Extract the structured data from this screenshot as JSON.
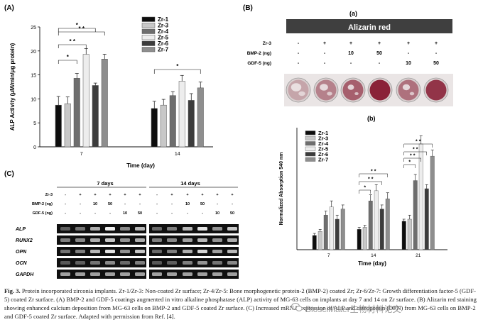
{
  "panels": {
    "A": "(A)",
    "B": "(B)",
    "C": "(C)",
    "Ba": "(a)",
    "Bb": "(b)"
  },
  "alizarin_title": "Alizarin red",
  "factor_table": {
    "rows": [
      {
        "label": "Zr-3",
        "values": [
          "-",
          "+",
          "+",
          "+",
          "+",
          "+"
        ]
      },
      {
        "label": "BMP-2 (ng)",
        "values": [
          "-",
          "-",
          "10",
          "50",
          "-",
          "-"
        ]
      },
      {
        "label": "GDF-5 (ng)",
        "values": [
          "-",
          "-",
          "-",
          "-",
          "10",
          "50"
        ]
      }
    ]
  },
  "gel": {
    "title_7": "7 days",
    "title_14": "14 days",
    "rows": [
      {
        "label": "Zr-3",
        "values": [
          "-",
          "+",
          "+",
          "+",
          "+",
          "+"
        ]
      },
      {
        "label": "BMP-2 (ng)",
        "values": [
          "-",
          "-",
          "10",
          "50",
          "-",
          "-"
        ]
      },
      {
        "label": "GDF-5 (ng)",
        "values": [
          "-",
          "-",
          "-",
          "-",
          "10",
          "50"
        ]
      }
    ],
    "genes": [
      "ALP",
      "RUNX2",
      "OPN",
      "OCN",
      "GAPDH"
    ],
    "intensity_7": [
      [
        0.35,
        0.45,
        0.7,
        0.95,
        0.55,
        0.75
      ],
      [
        0.5,
        0.55,
        0.7,
        0.8,
        0.6,
        0.7
      ],
      [
        0.45,
        0.5,
        0.75,
        0.9,
        0.6,
        0.8
      ],
      [
        0.3,
        0.35,
        0.45,
        0.55,
        0.4,
        0.5
      ],
      [
        0.65,
        0.65,
        0.65,
        0.65,
        0.65,
        0.65
      ]
    ],
    "intensity_14": [
      [
        0.4,
        0.5,
        0.75,
        0.9,
        0.6,
        0.8
      ],
      [
        0.5,
        0.55,
        0.65,
        0.75,
        0.6,
        0.7
      ],
      [
        0.4,
        0.5,
        0.7,
        0.85,
        0.65,
        0.75
      ],
      [
        0.3,
        0.35,
        0.5,
        0.6,
        0.45,
        0.55
      ],
      [
        0.65,
        0.65,
        0.65,
        0.65,
        0.65,
        0.65
      ]
    ]
  },
  "colors": {
    "Zr-1": "#0d0d0d",
    "Zr-3": "#c8c8c8",
    "Zr-4": "#6e6e6e",
    "Zr-5": "#ededed",
    "Zr-6": "#3c3c3c",
    "Zr-7": "#8e8e8e",
    "dish_rim": "#d9d0d0",
    "dish_stain": "#8a2238",
    "dish_white": "#efe9ea"
  },
  "chart_data": [
    {
      "type": "bar",
      "xlabel": "Time (day)",
      "ylabel": "ALP Activity (μM/min/μg protein)",
      "categories": [
        "7",
        "14"
      ],
      "ylim": [
        0,
        25
      ],
      "yticks": [
        "0",
        "5",
        "10",
        "15",
        "20",
        "25"
      ],
      "series": [
        {
          "name": "Zr-1",
          "values": [
            8.7,
            8.0
          ],
          "errors": [
            1.8,
            1.5
          ]
        },
        {
          "name": "Zr-3",
          "values": [
            9.0,
            8.7
          ],
          "errors": [
            1.4,
            1.2
          ]
        },
        {
          "name": "Zr-4",
          "values": [
            14.3,
            10.7
          ],
          "errors": [
            1.0,
            0.8
          ]
        },
        {
          "name": "Zr-5",
          "values": [
            19.3,
            13.7
          ],
          "errors": [
            1.2,
            1.2
          ]
        },
        {
          "name": "Zr-6",
          "values": [
            12.8,
            9.7
          ],
          "errors": [
            0.5,
            1.4
          ]
        },
        {
          "name": "Zr-7",
          "values": [
            18.3,
            12.3
          ],
          "errors": [
            1.0,
            1.2
          ]
        }
      ],
      "annotations": [
        "*",
        "*",
        "* *",
        "* *",
        "*"
      ],
      "legend_position": "top-right",
      "grid": false
    },
    {
      "type": "bar",
      "xlabel": "Time (day)",
      "ylabel": "Normalized Absorption 540 nm",
      "categories": [
        "7",
        "14",
        "21"
      ],
      "ylim": [
        0,
        0.6
      ],
      "series": [
        {
          "name": "Zr-1",
          "values": [
            0.07,
            0.1,
            0.14
          ],
          "errors": [
            0.01,
            0.01,
            0.01
          ]
        },
        {
          "name": "Zr-3",
          "values": [
            0.09,
            0.11,
            0.15
          ],
          "errors": [
            0.01,
            0.01,
            0.02
          ]
        },
        {
          "name": "Zr-4",
          "values": [
            0.17,
            0.24,
            0.34
          ],
          "errors": [
            0.02,
            0.03,
            0.03
          ]
        },
        {
          "name": "Zr-5",
          "values": [
            0.21,
            0.29,
            0.52
          ],
          "errors": [
            0.03,
            0.03,
            0.04
          ]
        },
        {
          "name": "Zr-6",
          "values": [
            0.15,
            0.2,
            0.3
          ],
          "errors": [
            0.02,
            0.02,
            0.02
          ]
        },
        {
          "name": "Zr-7",
          "values": [
            0.2,
            0.25,
            0.46
          ],
          "errors": [
            0.02,
            0.03,
            0.03
          ]
        }
      ],
      "annotations": [
        "*",
        "* *",
        "* *",
        "* *",
        "*",
        "* *",
        "* *"
      ],
      "legend_position": "top-left",
      "grid": false
    }
  ],
  "caption": {
    "label": "Fig. 3.",
    "text": " Protein incorporated zirconia implants. Zr-1/Zr-3: Non-coated Zr surface; Zr-4/Zr-5: Bone morphogenetic protein-2 (BMP-2) coated Zr; Zr-6/Zr-7: Growth differentiation factor-5 (GDF-5) coated Zr surface. (A) BMP-2 and GDF-5 coatings augmented in vitro alkaline phosphatase (ALP) activity of MG-63 cells on implants at day 7 and 14 on Zr surface. (B) Alizarin red staining showing enhanced calcium deposition from MG-63 cells on BMP-2 and GDF-5 coated Zr surface. (C) Increased mRNA expression of ALP and osteopontin (OPN) from MG-63 cells on BMP-2 and GDF-5 coated Zr surface. Adapted with permission from Ref. [4]."
  },
  "watermark": "BiosciMater生物材料论文"
}
